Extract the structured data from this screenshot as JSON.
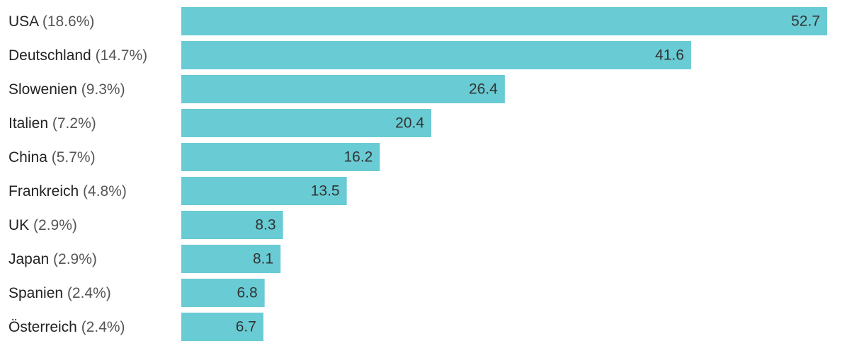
{
  "chart_data": {
    "type": "bar",
    "orientation": "horizontal",
    "categories": [
      {
        "name": "USA",
        "share": "(18.6%)"
      },
      {
        "name": "Deutschland",
        "share": "(14.7%)"
      },
      {
        "name": "Slowenien",
        "share": "(9.3%)"
      },
      {
        "name": "Italien",
        "share": "(7.2%)"
      },
      {
        "name": "China",
        "share": "(5.7%)"
      },
      {
        "name": "Frankreich",
        "share": "(4.8%)"
      },
      {
        "name": "UK",
        "share": "(2.9%)"
      },
      {
        "name": "Japan",
        "share": "(2.9%)"
      },
      {
        "name": "Spanien",
        "share": "(2.4%)"
      },
      {
        "name": "Österreich",
        "share": "(2.4%)"
      }
    ],
    "values": [
      52.7,
      41.6,
      26.4,
      20.4,
      16.2,
      13.5,
      8.3,
      8.1,
      6.8,
      6.7
    ],
    "value_labels": [
      "52.7",
      "41.6",
      "26.4",
      "20.4",
      "16.2",
      "13.5",
      "8.3",
      "8.1",
      "6.8",
      "6.7"
    ],
    "xlim": [
      0,
      52.7
    ],
    "grid": false,
    "legend": "none",
    "title": "",
    "xlabel": "",
    "ylabel": "",
    "bar_color": "#69cbd4"
  }
}
